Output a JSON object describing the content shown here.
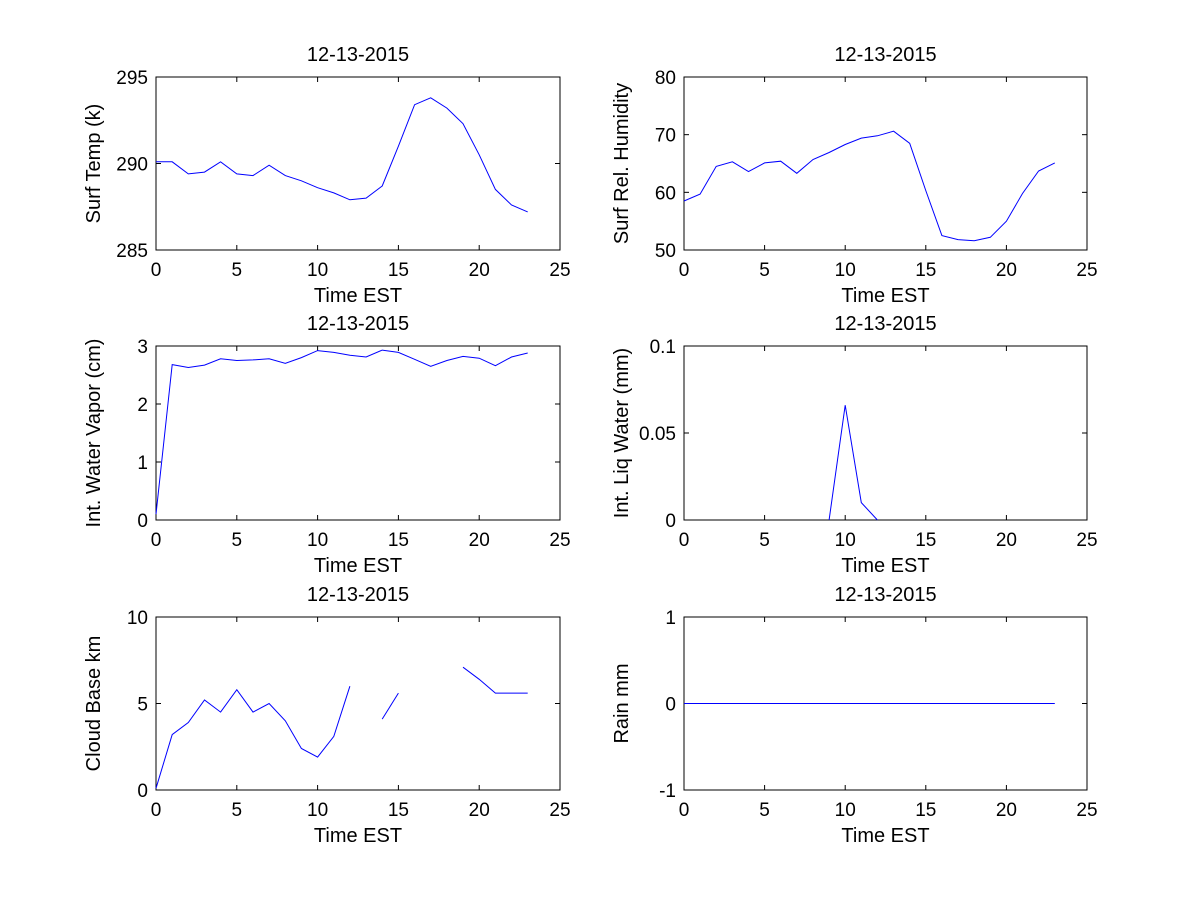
{
  "figure": {
    "background": "#ffffff",
    "line_color": "#0000ff"
  },
  "chart_data": [
    {
      "type": "line",
      "title": "12-13-2015",
      "xlabel": "Time EST",
      "ylabel": "Surf Temp (k)",
      "xlim": [
        0,
        25
      ],
      "ylim": [
        285,
        295
      ],
      "xticks": [
        0,
        5,
        10,
        15,
        20,
        25
      ],
      "yticks": [
        285,
        290,
        295
      ],
      "xtick_labels": [
        "0",
        "5",
        "10",
        "15",
        "20",
        "25"
      ],
      "ytick_labels": [
        "285",
        "290",
        "295"
      ],
      "x": [
        0,
        1,
        2,
        3,
        4,
        5,
        6,
        7,
        8,
        9,
        10,
        11,
        12,
        13,
        14,
        15,
        16,
        17,
        18,
        19,
        20,
        21,
        22,
        23
      ],
      "y": [
        290.1,
        290.1,
        289.4,
        289.5,
        290.1,
        289.4,
        289.3,
        289.9,
        289.3,
        289.0,
        288.6,
        288.3,
        287.9,
        288.0,
        288.7,
        291.0,
        293.4,
        293.8,
        293.2,
        292.3,
        290.5,
        288.5,
        287.6,
        287.2
      ],
      "grid": false
    },
    {
      "type": "line",
      "title": "12-13-2015",
      "xlabel": "Time EST",
      "ylabel": "Surf Rel. Humidity",
      "xlim": [
        0,
        25
      ],
      "ylim": [
        50,
        80
      ],
      "xticks": [
        0,
        5,
        10,
        15,
        20,
        25
      ],
      "yticks": [
        50,
        60,
        70,
        80
      ],
      "xtick_labels": [
        "0",
        "5",
        "10",
        "15",
        "20",
        "25"
      ],
      "ytick_labels": [
        "50",
        "60",
        "70",
        "80"
      ],
      "x": [
        0,
        1,
        2,
        3,
        4,
        5,
        6,
        7,
        8,
        9,
        10,
        11,
        12,
        13,
        14,
        15,
        16,
        17,
        18,
        19,
        20,
        21,
        22,
        23
      ],
      "y": [
        58.5,
        59.7,
        64.5,
        65.3,
        63.6,
        65.1,
        65.4,
        63.3,
        65.7,
        66.9,
        68.3,
        69.4,
        69.8,
        70.6,
        68.5,
        60.3,
        52.5,
        51.8,
        51.6,
        52.2,
        55.0,
        59.8,
        63.7,
        65.1
      ],
      "grid": false
    },
    {
      "type": "line",
      "title": "12-13-2015",
      "xlabel": "Time EST",
      "ylabel": "Int. Water Vapor (cm)",
      "xlim": [
        0,
        25
      ],
      "ylim": [
        0,
        3
      ],
      "xticks": [
        0,
        5,
        10,
        15,
        20,
        25
      ],
      "yticks": [
        0,
        1,
        2,
        3
      ],
      "xtick_labels": [
        "0",
        "5",
        "10",
        "15",
        "20",
        "25"
      ],
      "ytick_labels": [
        "0",
        "1",
        "2",
        "3"
      ],
      "x": [
        0,
        1,
        2,
        3,
        4,
        5,
        6,
        7,
        8,
        9,
        10,
        11,
        12,
        13,
        14,
        15,
        16,
        17,
        18,
        19,
        20,
        21,
        22,
        23
      ],
      "y": [
        0.1,
        2.68,
        2.63,
        2.67,
        2.78,
        2.75,
        2.76,
        2.78,
        2.7,
        2.8,
        2.92,
        2.89,
        2.84,
        2.81,
        2.93,
        2.89,
        2.77,
        2.65,
        2.75,
        2.82,
        2.79,
        2.66,
        2.81,
        2.88
      ],
      "grid": false
    },
    {
      "type": "line",
      "title": "12-13-2015",
      "xlabel": "Time EST",
      "ylabel": "Int. Liq Water (mm)",
      "xlim": [
        0,
        25
      ],
      "ylim": [
        0,
        0.1
      ],
      "xticks": [
        0,
        5,
        10,
        15,
        20,
        25
      ],
      "yticks": [
        0,
        0.05,
        0.1
      ],
      "xtick_labels": [
        "0",
        "5",
        "10",
        "15",
        "20",
        "25"
      ],
      "ytick_labels": [
        "0",
        "0.05",
        "0.1"
      ],
      "x": [
        9,
        10,
        11,
        12
      ],
      "y": [
        0,
        0.066,
        0.01,
        0
      ],
      "grid": false
    },
    {
      "type": "line",
      "title": "12-13-2015",
      "xlabel": "Time EST",
      "ylabel": "Cloud Base km",
      "xlim": [
        0,
        25
      ],
      "ylim": [
        0,
        10
      ],
      "xticks": [
        0,
        5,
        10,
        15,
        20,
        25
      ],
      "yticks": [
        0,
        5,
        10
      ],
      "xtick_labels": [
        "0",
        "5",
        "10",
        "15",
        "20",
        "25"
      ],
      "ytick_labels": [
        "0",
        "5",
        "10"
      ],
      "x": [
        0,
        1,
        2,
        3,
        4,
        5,
        6,
        7,
        8,
        9,
        10,
        11,
        12,
        13,
        14,
        15,
        16,
        17,
        18,
        19,
        20,
        21,
        22,
        23
      ],
      "y": [
        0.1,
        3.2,
        3.9,
        5.2,
        4.5,
        5.8,
        4.5,
        5.0,
        4.0,
        2.4,
        1.9,
        3.1,
        6.0,
        null,
        4.1,
        5.6,
        null,
        null,
        null,
        7.1,
        6.4,
        5.6,
        5.6,
        5.6
      ],
      "grid": false
    },
    {
      "type": "line",
      "title": "12-13-2015",
      "xlabel": "Time EST",
      "ylabel": "Rain mm",
      "xlim": [
        0,
        25
      ],
      "ylim": [
        -1,
        1
      ],
      "xticks": [
        0,
        5,
        10,
        15,
        20,
        25
      ],
      "yticks": [
        -1,
        0,
        1
      ],
      "xtick_labels": [
        "0",
        "5",
        "10",
        "15",
        "20",
        "25"
      ],
      "ytick_labels": [
        "-1",
        "0",
        "1"
      ],
      "x": [
        0,
        1,
        2,
        3,
        4,
        5,
        6,
        7,
        8,
        9,
        10,
        11,
        12,
        13,
        14,
        15,
        16,
        17,
        18,
        19,
        20,
        21,
        22,
        23
      ],
      "y": [
        0,
        0,
        0,
        0,
        0,
        0,
        0,
        0,
        0,
        0,
        0,
        0,
        0,
        0,
        0,
        0,
        0,
        0,
        0,
        0,
        0,
        0,
        0,
        0
      ],
      "grid": false
    }
  ]
}
